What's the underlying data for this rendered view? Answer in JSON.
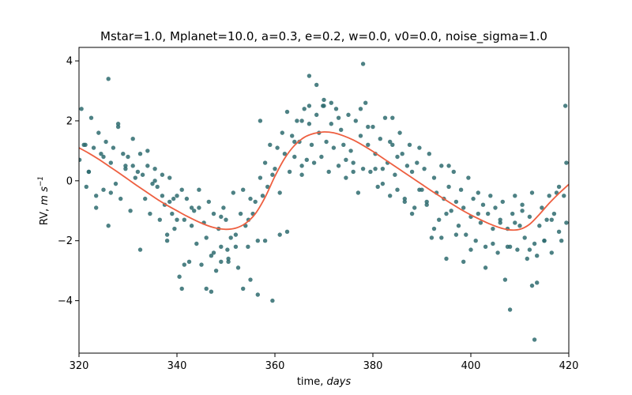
{
  "chart_data": {
    "type": "scatter",
    "title": "Mstar=1.0, Mplanet=10.0, a=0.3, e=0.2, w=0.0, v0=0.0, noise_sigma=1.0",
    "xlabel": {
      "main": "time, ",
      "italic": "days"
    },
    "ylabel": {
      "main": "RV, ",
      "italic": "m s",
      "sup": "−1"
    },
    "xlim": [
      320,
      420
    ],
    "ylim": [
      -5.75,
      4.45
    ],
    "xticks": [
      320,
      340,
      360,
      380,
      400,
      420
    ],
    "yticks": [
      -4,
      -2,
      0,
      2,
      4
    ],
    "grid": false,
    "colors": {
      "points": "#2e6b6e",
      "model": "#ee5f40"
    },
    "series": [
      {
        "name": "model",
        "kind": "line",
        "x": [
          320,
          322,
          324,
          326,
          328,
          330,
          332,
          334,
          336,
          338,
          340,
          342,
          344,
          346,
          348,
          350,
          352,
          354,
          356,
          358,
          360,
          362,
          364,
          366,
          368,
          370,
          372,
          374,
          376,
          378,
          380,
          382,
          384,
          386,
          388,
          390,
          392,
          394,
          396,
          398,
          400,
          402,
          404,
          406,
          408,
          410,
          412,
          414,
          416,
          418,
          420
        ],
        "y": [
          1.1,
          0.92,
          0.72,
          0.5,
          0.28,
          0.05,
          -0.18,
          -0.4,
          -0.62,
          -0.82,
          -1.0,
          -1.18,
          -1.34,
          -1.48,
          -1.58,
          -1.62,
          -1.58,
          -1.42,
          -1.1,
          -0.55,
          0.15,
          0.75,
          1.18,
          1.45,
          1.58,
          1.63,
          1.6,
          1.5,
          1.36,
          1.18,
          0.98,
          0.76,
          0.54,
          0.32,
          0.1,
          -0.12,
          -0.34,
          -0.55,
          -0.76,
          -0.96,
          -1.14,
          -1.3,
          -1.45,
          -1.57,
          -1.64,
          -1.62,
          -1.45,
          -1.12,
          -0.75,
          -0.42,
          -0.12
        ]
      },
      {
        "name": "observations",
        "kind": "points",
        "x": [
          320.1,
          320.5,
          321.0,
          321.5,
          322.0,
          322.5,
          323.0,
          323.5,
          324.0,
          324.5,
          325.0,
          325.5,
          326.0,
          326.5,
          327.0,
          327.5,
          328.0,
          328.5,
          329.0,
          329.5,
          330.0,
          330.5,
          331.0,
          331.5,
          332.0,
          332.5,
          333.0,
          333.5,
          334.0,
          334.5,
          335.0,
          335.5,
          336.0,
          336.5,
          337.0,
          337.5,
          338.0,
          338.5,
          339.0,
          339.5,
          340.0,
          340.5,
          341.0,
          341.5,
          342.0,
          342.5,
          343.0,
          343.5,
          344.0,
          344.5,
          345.0,
          345.5,
          346.0,
          346.5,
          347.0,
          347.5,
          348.0,
          348.5,
          349.0,
          349.5,
          350.0,
          350.5,
          351.0,
          351.5,
          352.0,
          352.5,
          353.0,
          353.5,
          354.0,
          354.5,
          355.0,
          355.5,
          356.0,
          356.5,
          357.0,
          357.5,
          358.0,
          358.5,
          359.0,
          359.5,
          360.0,
          360.5,
          361.0,
          361.5,
          362.0,
          362.5,
          363.0,
          363.5,
          364.0,
          364.5,
          365.0,
          365.5,
          366.0,
          366.5,
          367.0,
          367.5,
          368.0,
          368.5,
          369.0,
          369.5,
          370.0,
          370.5,
          371.0,
          371.5,
          372.0,
          372.5,
          373.0,
          373.5,
          374.0,
          374.5,
          375.0,
          375.5,
          376.0,
          376.5,
          377.0,
          377.5,
          378.0,
          378.5,
          379.0,
          379.5,
          380.0,
          380.5,
          381.0,
          381.5,
          382.0,
          382.5,
          383.0,
          383.5,
          384.0,
          384.5,
          385.0,
          385.5,
          386.0,
          386.5,
          387.0,
          387.5,
          388.0,
          388.5,
          389.0,
          389.5,
          390.0,
          390.5,
          391.0,
          391.5,
          392.0,
          392.5,
          393.0,
          393.5,
          394.0,
          394.5,
          395.0,
          395.5,
          396.0,
          396.5,
          397.0,
          397.5,
          398.0,
          398.5,
          399.0,
          399.5,
          400.0,
          400.5,
          401.0,
          401.5,
          402.0,
          402.5,
          403.0,
          403.5,
          404.0,
          404.5,
          405.0,
          405.5,
          406.0,
          406.5,
          407.0,
          407.5,
          408.0,
          408.5,
          409.0,
          409.5,
          410.0,
          410.5,
          411.0,
          411.5,
          412.0,
          412.5,
          413.0,
          413.5,
          414.0,
          414.5,
          415.0,
          415.5,
          416.0,
          416.5,
          417.0,
          417.5,
          418.0,
          418.5,
          419.0,
          419.5,
          322.0,
          323.5,
          325.0,
          326.5,
          328.0,
          329.5,
          331.0,
          332.5,
          334.0,
          335.5,
          337.0,
          338.5,
          340.0,
          341.5,
          343.0,
          344.5,
          346.0,
          347.5,
          349.0,
          350.5,
          352.0,
          353.5,
          355.0,
          356.5,
          358.0,
          359.5,
          361.0,
          362.5,
          364.0,
          365.5,
          367.0,
          368.5,
          370.0,
          371.5,
          373.0,
          374.5,
          376.0,
          377.5,
          379.0,
          380.5,
          382.0,
          383.5,
          385.0,
          386.5,
          388.0,
          389.5,
          391.0,
          392.5,
          394.0,
          395.5,
          397.0,
          398.5,
          400.0,
          401.5,
          403.0,
          404.5,
          406.0,
          407.5,
          409.0,
          410.5,
          412.0,
          413.5,
          415.0,
          416.5,
          418.0,
          419.5,
          326.0,
          338.0,
          341.0,
          347.0,
          349.0,
          357.0,
          367.0,
          369.8,
          378.0,
          384.0,
          395.0,
          408.0,
          412.5,
          413.0,
          419.3,
          321.3,
          339.3,
          350.3,
          354.6,
          365.5
        ],
        "y": [
          0.7,
          2.4,
          1.2,
          -0.2,
          0.3,
          2.1,
          1.1,
          -0.5,
          1.6,
          0.9,
          -0.3,
          1.3,
          -1.5,
          0.6,
          1.1,
          -0.1,
          1.8,
          -0.6,
          0.9,
          0.4,
          0.8,
          -1.0,
          0.5,
          0.1,
          0.3,
          -2.3,
          0.2,
          -0.6,
          0.5,
          -1.1,
          -0.1,
          0.4,
          -0.2,
          -1.3,
          -0.5,
          -0.8,
          -2.0,
          0.1,
          -1.1,
          -1.6,
          -0.5,
          -3.2,
          -0.3,
          -1.3,
          -0.6,
          -2.7,
          -1.5,
          -1.0,
          -2.1,
          -0.9,
          -2.8,
          -1.4,
          -1.9,
          -0.7,
          -2.5,
          -1.1,
          -3.0,
          -1.6,
          -2.2,
          -0.9,
          -1.3,
          -2.6,
          -1.9,
          -0.4,
          -1.8,
          -2.9,
          -1.1,
          -0.3,
          -1.5,
          -2.2,
          -0.6,
          -1.1,
          -0.7,
          -2.0,
          0.1,
          -0.5,
          0.6,
          -0.2,
          1.2,
          0.2,
          0.4,
          1.1,
          -0.4,
          1.6,
          0.9,
          2.3,
          0.3,
          1.5,
          0.8,
          2.0,
          1.3,
          0.2,
          2.4,
          0.7,
          1.9,
          1.2,
          0.6,
          2.2,
          1.6,
          0.8,
          2.7,
          1.3,
          0.3,
          1.9,
          1.1,
          2.4,
          0.5,
          1.7,
          1.2,
          0.1,
          2.2,
          1.0,
          0.6,
          2.0,
          -0.4,
          1.5,
          0.4,
          2.6,
          1.2,
          0.3,
          1.8,
          0.9,
          -0.2,
          1.4,
          0.4,
          2.1,
          0.6,
          -0.5,
          1.2,
          0.2,
          -0.3,
          1.6,
          0.9,
          -0.6,
          0.5,
          1.2,
          0.3,
          -0.9,
          0.6,
          1.1,
          -0.3,
          0.4,
          -0.8,
          0.9,
          -1.9,
          0.1,
          -0.4,
          -1.3,
          0.5,
          -0.6,
          -2.6,
          -0.2,
          -1.0,
          0.3,
          -0.7,
          -1.5,
          -0.3,
          -0.9,
          -1.8,
          0.1,
          -1.2,
          -0.6,
          -2.0,
          -0.4,
          -1.4,
          -0.8,
          -2.2,
          -1.1,
          -0.5,
          -1.6,
          -0.9,
          -2.4,
          -1.3,
          -0.7,
          -3.3,
          -1.6,
          -2.2,
          -1.1,
          -0.5,
          -2.3,
          -1.5,
          -0.8,
          -1.9,
          -2.6,
          -1.2,
          -0.4,
          -2.1,
          -3.4,
          -1.5,
          -0.9,
          -2.0,
          -1.3,
          -0.5,
          -2.4,
          -1.1,
          -0.4,
          -1.7,
          -2.0,
          -0.5,
          -1.4,
          0.3,
          -0.9,
          0.8,
          -0.4,
          1.9,
          0.5,
          1.4,
          0.9,
          1.0,
          0.0,
          0.2,
          -0.7,
          -1.3,
          -2.8,
          -0.9,
          -0.3,
          -3.6,
          -2.4,
          -1.2,
          -2.7,
          -2.2,
          -3.6,
          -3.3,
          -3.8,
          -2.0,
          -4.0,
          -1.8,
          -1.7,
          1.3,
          0.5,
          2.5,
          3.2,
          2.5,
          2.6,
          2.1,
          0.7,
          0.3,
          2.4,
          1.8,
          0.4,
          -0.1,
          1.3,
          0.8,
          -0.7,
          -1.1,
          -0.3,
          -0.7,
          -1.6,
          -1.9,
          0.5,
          -1.8,
          -2.7,
          -2.3,
          -1.1,
          -2.9,
          -2.1,
          -1.4,
          -2.2,
          -1.4,
          -1.0,
          -2.3,
          -2.5,
          -2.0,
          -1.3,
          -0.2,
          0.6,
          3.4,
          -1.8,
          -3.6,
          -3.7,
          -2.7,
          2.0,
          3.5,
          2.5,
          3.9,
          2.1,
          -1.1,
          -4.3,
          -3.5,
          -5.3,
          2.5,
          1.2,
          -0.6,
          -2.3,
          -1.3,
          2.0
        ]
      }
    ]
  }
}
